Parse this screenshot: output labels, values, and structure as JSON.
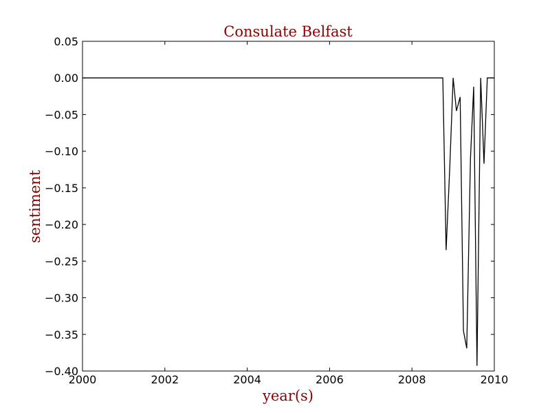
{
  "chart_data": {
    "type": "line",
    "title": "Consulate Belfast",
    "xlabel": "year(s)",
    "ylabel": "sentiment",
    "xlim": [
      2000,
      2010
    ],
    "ylim": [
      -0.4,
      0.05
    ],
    "x_ticks": [
      "2000",
      "2002",
      "2004",
      "2006",
      "2008",
      "2010"
    ],
    "y_ticks": [
      "0.05",
      "0.00",
      "−0.05",
      "−0.10",
      "−0.15",
      "−0.20",
      "−0.25",
      "−0.30",
      "−0.35",
      "−0.40"
    ],
    "grid": false,
    "series": [
      {
        "color": "#000000",
        "x": [
          2000.0,
          2008.75,
          2008.83,
          2008.92,
          2009.0,
          2009.08,
          2009.17,
          2009.25,
          2009.33,
          2009.42,
          2009.5,
          2009.58,
          2009.67,
          2009.75,
          2009.83,
          2009.92,
          2010.0
        ],
        "y": [
          0.0,
          0.0,
          -0.235,
          -0.12,
          0.0,
          -0.045,
          -0.026,
          -0.345,
          -0.369,
          -0.11,
          -0.012,
          -0.393,
          0.0,
          -0.117,
          0.0,
          0.0,
          0.0
        ]
      }
    ]
  }
}
